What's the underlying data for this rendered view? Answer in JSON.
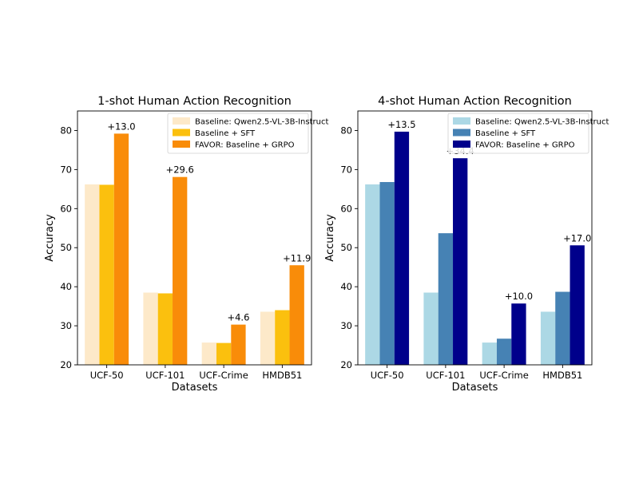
{
  "chart_data": [
    {
      "type": "bar",
      "title": "1-shot Human Action Recognition",
      "xlabel": "Datasets",
      "ylabel": "Accuracy",
      "ylim": [
        20,
        85
      ],
      "yticks": [
        "20",
        "30",
        "40",
        "50",
        "60",
        "70",
        "80"
      ],
      "categories": [
        "UCF-50",
        "UCF-101",
        "UCF-Crime",
        "HMDB51"
      ],
      "legend_position": "top-right",
      "series": [
        {
          "name": "Baseline: Qwen2.5-VL-3B-Instruct",
          "color": "#fde9c9",
          "values": [
            66.2,
            38.5,
            25.7,
            33.6
          ]
        },
        {
          "name": "Baseline + SFT",
          "color": "#fbc00e",
          "values": [
            66.1,
            38.3,
            25.6,
            34.0
          ]
        },
        {
          "name": "FAVOR: Baseline + GRPO",
          "color": "#f98c09",
          "values": [
            79.2,
            68.1,
            30.3,
            45.5
          ]
        }
      ],
      "annotations": [
        "+13.0",
        "+29.6",
        "+4.6",
        "+11.9"
      ]
    },
    {
      "type": "bar",
      "title": "4-shot Human Action Recognition",
      "xlabel": "Datasets",
      "ylabel": "Accuracy",
      "ylim": [
        20,
        85
      ],
      "yticks": [
        "20",
        "30",
        "40",
        "50",
        "60",
        "70",
        "80"
      ],
      "categories": [
        "UCF-50",
        "UCF-101",
        "UCF-Crime",
        "HMDB51"
      ],
      "legend_position": "top-right",
      "series": [
        {
          "name": "Baseline: Qwen2.5-VL-3B-Instruct",
          "color": "#acd8e5",
          "values": [
            66.2,
            38.5,
            25.7,
            33.6
          ]
        },
        {
          "name": "Baseline + SFT",
          "color": "#4682b4",
          "values": [
            66.8,
            53.7,
            26.7,
            38.7
          ]
        },
        {
          "name": "FAVOR: Baseline + GRPO",
          "color": "#00008b",
          "values": [
            79.7,
            72.9,
            35.7,
            50.6
          ]
        }
      ],
      "annotations": [
        "+13.5",
        "+34.4",
        "+10.0",
        "+17.0"
      ]
    }
  ]
}
